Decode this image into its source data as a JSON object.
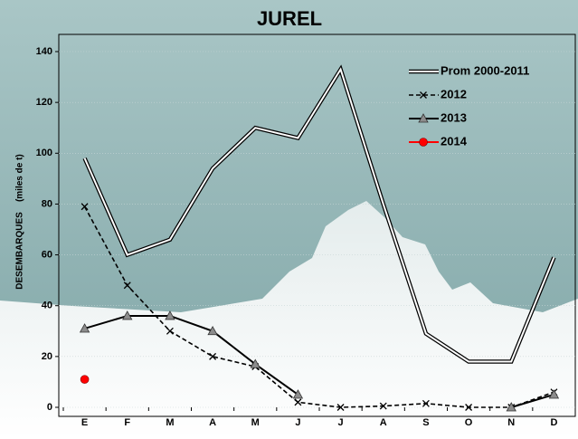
{
  "chart_data": {
    "type": "line",
    "title": "JUREL",
    "ylabel": "DESEMBARQUES    (miles de t)",
    "categories": [
      "E",
      "F",
      "M",
      "A",
      "M",
      "J",
      "J",
      "A",
      "S",
      "O",
      "N",
      "D"
    ],
    "series": [
      {
        "name": "Prom 2000-2011",
        "color": "#000000",
        "style": "double",
        "marker": "none",
        "values": [
          98,
          60,
          66,
          94,
          110,
          106,
          133,
          80,
          29,
          18,
          18,
          59
        ]
      },
      {
        "name": "2012",
        "color": "#000000",
        "style": "dashed",
        "marker": "x",
        "values": [
          79,
          48,
          30,
          20,
          16,
          2,
          0,
          0.5,
          1.5,
          0,
          0,
          6
        ]
      },
      {
        "name": "2013",
        "color": "#000000",
        "style": "solid",
        "marker": "triangle",
        "values": [
          31,
          36,
          36,
          30,
          17,
          5,
          null,
          null,
          null,
          null,
          0,
          5
        ]
      },
      {
        "name": "2014",
        "color": "#ff0000",
        "style": "solid",
        "marker": "circle",
        "values": [
          11,
          null,
          null,
          null,
          null,
          null,
          null,
          null,
          null,
          null,
          null,
          null
        ]
      }
    ],
    "ylim": [
      0,
      140
    ],
    "yticks": [
      0,
      20,
      40,
      60,
      80,
      100,
      120,
      140
    ],
    "grid": true,
    "legend": "upper right"
  }
}
